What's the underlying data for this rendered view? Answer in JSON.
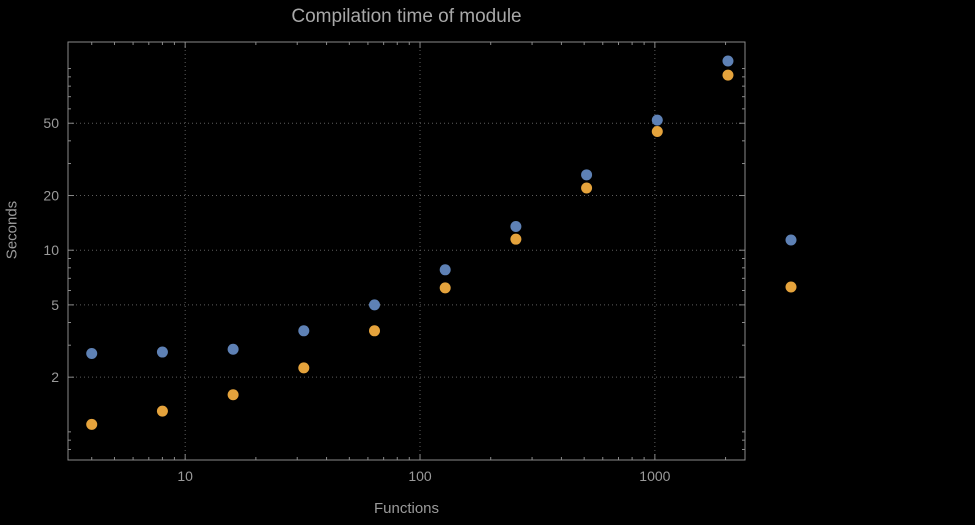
{
  "window": {
    "background": "#000000"
  },
  "chart_data": {
    "type": "scatter",
    "title": "Compilation time of module",
    "xlabel": "Functions",
    "ylabel": "Seconds",
    "x_scale": "log",
    "y_scale": "log",
    "x": [
      4,
      8,
      16,
      32,
      64,
      128,
      256,
      512,
      1024,
      2048
    ],
    "series": [
      {
        "name": "blue",
        "color": "#5e81b5",
        "values": [
          2.7,
          2.75,
          2.85,
          3.6,
          5.0,
          7.8,
          13.5,
          26,
          52,
          110
        ]
      },
      {
        "name": "orange",
        "color": "#e5a33c",
        "values": [
          1.1,
          1.3,
          1.6,
          2.25,
          3.6,
          6.2,
          11.5,
          22,
          45,
          92
        ]
      }
    ],
    "xlim": [
      3.17,
      2420
    ],
    "ylim": [
      0.7,
      140
    ],
    "x_ticks": [
      10,
      100,
      1000
    ],
    "y_ticks": [
      2,
      5,
      10,
      20,
      50
    ],
    "grid": "dotted",
    "legend": {
      "position": "right",
      "markers": [
        {
          "series": "blue",
          "color": "#5e81b5"
        },
        {
          "series": "orange",
          "color": "#e5a33c"
        }
      ]
    }
  },
  "style": {
    "text_color": "#9a9a9a",
    "title_color": "#a8a8a8",
    "frame_color": "#8a8a8a",
    "grid_color": "#5e5e5e",
    "point_radius": 5.5
  }
}
